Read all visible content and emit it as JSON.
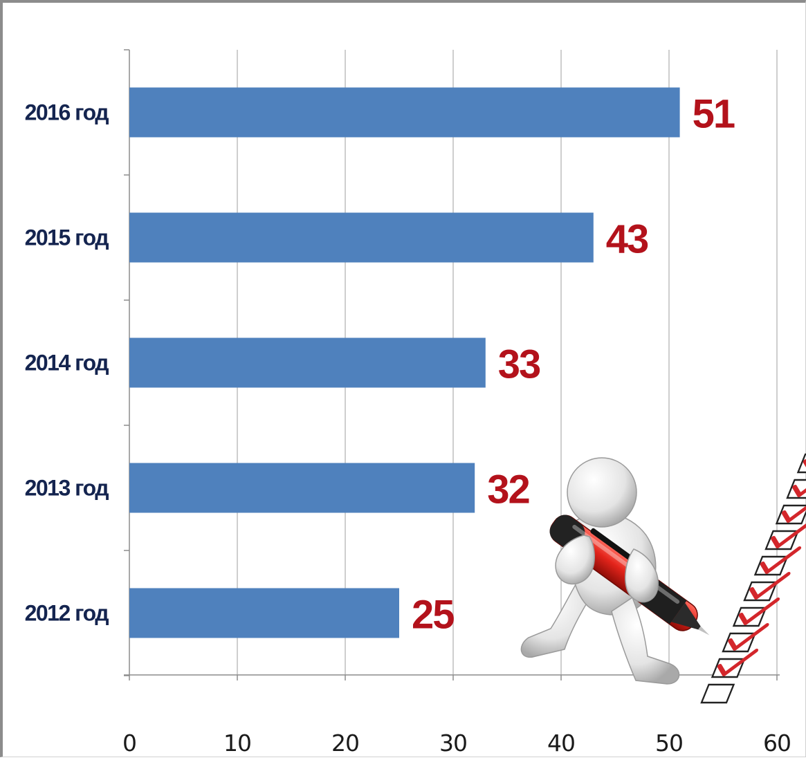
{
  "chart_data": {
    "type": "bar",
    "orientation": "horizontal",
    "categories": [
      "2016 год",
      "2015 год",
      "2014 год",
      "2013 год",
      "2012 год"
    ],
    "values": [
      51,
      43,
      33,
      32,
      25
    ],
    "xlim": [
      0,
      60
    ],
    "xticks": [
      0,
      10,
      20,
      30,
      40,
      50,
      60
    ],
    "grid": "vertical",
    "bar_color": "#4f81bd",
    "data_label_color": "#b3121b",
    "category_label_color": "#14244f"
  },
  "illustration": {
    "figure": "3d-person-with-pen-icon",
    "checklist": "checklist-icon",
    "pen_color": "#e8322b"
  }
}
